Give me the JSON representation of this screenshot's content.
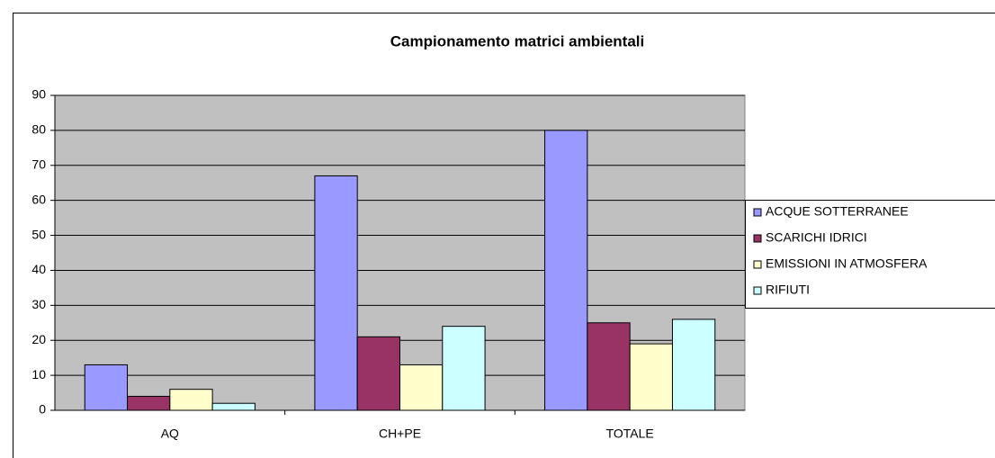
{
  "chart_data": {
    "type": "bar",
    "title": "Campionamento matrici ambientali",
    "categories": [
      "AQ",
      "CH+PE",
      "TOTALE"
    ],
    "series": [
      {
        "name": "ACQUE SOTTERRANEE",
        "color": "#9999ff",
        "values": [
          13,
          67,
          80
        ]
      },
      {
        "name": "SCARICHI IDRICI",
        "color": "#993366",
        "values": [
          4,
          21,
          25
        ]
      },
      {
        "name": "EMISSIONI IN ATMOSFERA",
        "color": "#ffffcc",
        "values": [
          6,
          13,
          19
        ]
      },
      {
        "name": "RIFIUTI",
        "color": "#ccffff",
        "values": [
          2,
          24,
          26
        ]
      }
    ],
    "ylim": [
      0,
      90
    ],
    "yticks": [
      0,
      10,
      20,
      30,
      40,
      50,
      60,
      70,
      80,
      90
    ],
    "grid": true,
    "legend": "right",
    "plot_background": "#c0c0c0"
  }
}
